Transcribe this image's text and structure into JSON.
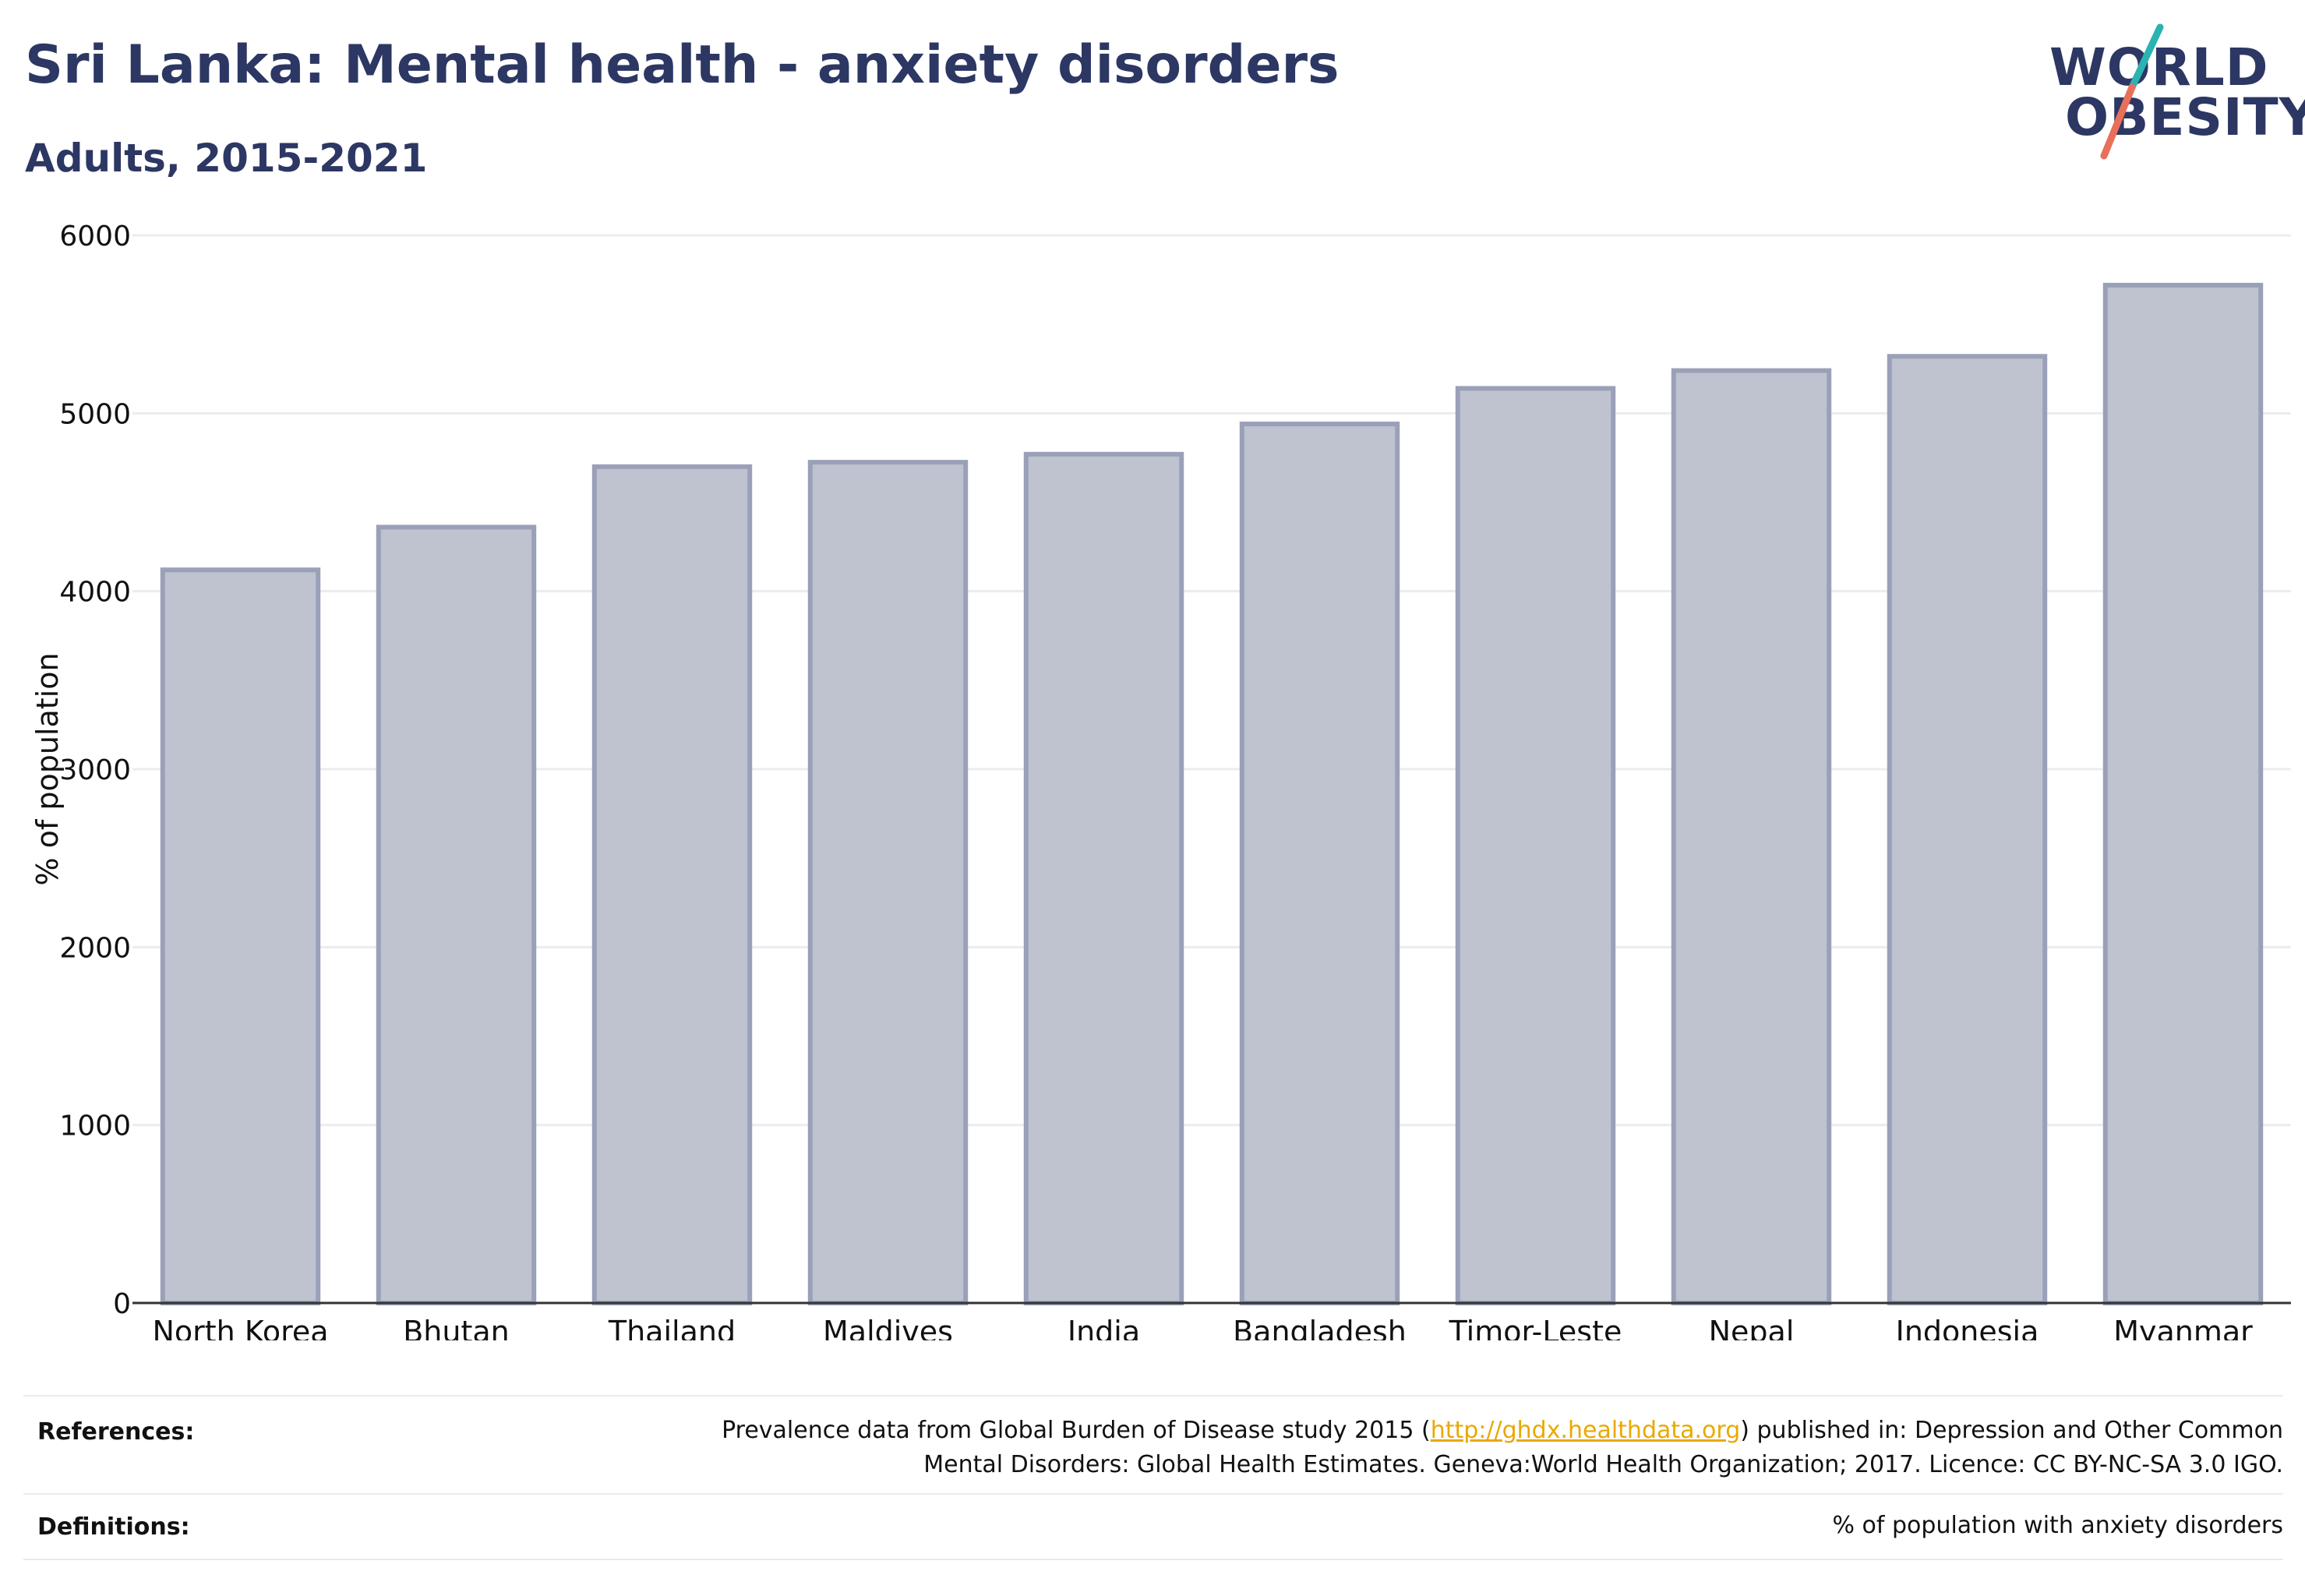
{
  "header": {
    "title": "Sri Lanka: Mental health - anxiety disorders",
    "subtitle": "Adults, 2015-2021"
  },
  "logo": {
    "line1": "WORLD",
    "line2": "OBESITY",
    "colors": {
      "text": "#2c3763",
      "slash_top": "#2bb3b1",
      "slash_bottom": "#e8705a"
    }
  },
  "chart_data": {
    "type": "bar",
    "categories": [
      "North Korea",
      "Bhutan",
      "Thailand",
      "Maldives",
      "India",
      "Bangladesh",
      "Timor-Leste",
      "Nepal",
      "Indonesia",
      "Myanmar"
    ],
    "values": [
      4120,
      4360,
      4700,
      4725,
      4770,
      4940,
      5140,
      5240,
      5320,
      5720
    ],
    "title": "",
    "xlabel": "",
    "ylabel": "% of population",
    "ylim": [
      0,
      6000
    ],
    "yticks": [
      0,
      1000,
      2000,
      3000,
      4000,
      5000,
      6000
    ],
    "grid": true,
    "colors": {
      "bar_fill": "#bfc2cf",
      "bar_stroke": "#9aa0b8",
      "axis": "#333333",
      "grid": "#ececf0"
    }
  },
  "footer": {
    "references_label": "References:",
    "references_text_before": "Prevalence data from Global Burden of Disease study 2015 (",
    "references_link": "http://ghdx.healthdata.org",
    "references_text_after": ") published in: Depression and Other Common",
    "references_line2": "Mental Disorders: Global Health Estimates. Geneva:World Health Organization; 2017. Licence: CC BY-NC-SA 3.0 IGO.",
    "definitions_label": "Definitions:",
    "definitions_text": "% of population with anxiety disorders"
  }
}
